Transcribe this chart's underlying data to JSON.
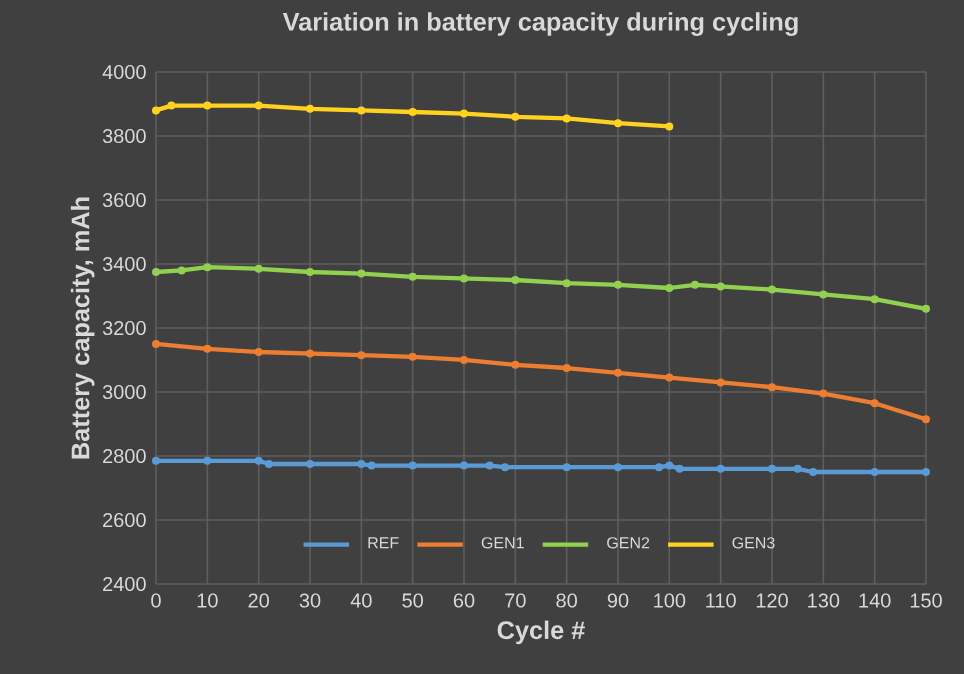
{
  "chart_data": {
    "type": "line",
    "title": "Variation in battery capacity during cycling",
    "xlabel": "Cycle #",
    "ylabel": "Battery capacity, mAh",
    "xlim": [
      0,
      150
    ],
    "xticks": [
      0,
      10,
      20,
      30,
      40,
      50,
      60,
      70,
      80,
      90,
      100,
      110,
      120,
      130,
      140,
      150
    ],
    "ylim": [
      2400,
      4000
    ],
    "yticks": [
      2400,
      2600,
      2800,
      3000,
      3200,
      3400,
      3600,
      3800,
      4000
    ],
    "grid": true,
    "legend": "bottom",
    "marker": "circle",
    "line_style": "solid",
    "series": [
      {
        "name": "REF",
        "color": "#5b9bd5",
        "x": [
          0,
          10,
          20,
          22,
          30,
          40,
          42,
          50,
          60,
          65,
          68,
          80,
          90,
          98,
          100,
          102,
          110,
          120,
          125,
          128,
          140,
          150
        ],
        "values": [
          2785,
          2785,
          2785,
          2775,
          2775,
          2775,
          2770,
          2770,
          2770,
          2770,
          2765,
          2765,
          2765,
          2765,
          2770,
          2760,
          2760,
          2760,
          2760,
          2750,
          2750,
          2750
        ]
      },
      {
        "name": "GEN1",
        "color": "#ed7d31",
        "x": [
          0,
          10,
          20,
          30,
          40,
          50,
          60,
          70,
          80,
          90,
          100,
          110,
          120,
          130,
          140,
          150
        ],
        "values": [
          3150,
          3135,
          3125,
          3120,
          3115,
          3110,
          3100,
          3085,
          3075,
          3060,
          3045,
          3030,
          3015,
          2995,
          2965,
          2915
        ]
      },
      {
        "name": "GEN2",
        "color": "#92d050",
        "x": [
          0,
          5,
          10,
          20,
          30,
          40,
          50,
          60,
          70,
          80,
          90,
          100,
          105,
          110,
          120,
          130,
          140,
          150
        ],
        "values": [
          3375,
          3380,
          3390,
          3385,
          3375,
          3370,
          3360,
          3355,
          3350,
          3340,
          3335,
          3325,
          3335,
          3330,
          3320,
          3305,
          3290,
          3260
        ]
      },
      {
        "name": "GEN3",
        "color": "#ffd21f",
        "x": [
          0,
          3,
          10,
          20,
          30,
          40,
          50,
          60,
          70,
          80,
          90,
          100
        ],
        "values": [
          3880,
          3895,
          3895,
          3895,
          3885,
          3880,
          3875,
          3870,
          3860,
          3855,
          3840,
          3830
        ]
      }
    ]
  }
}
